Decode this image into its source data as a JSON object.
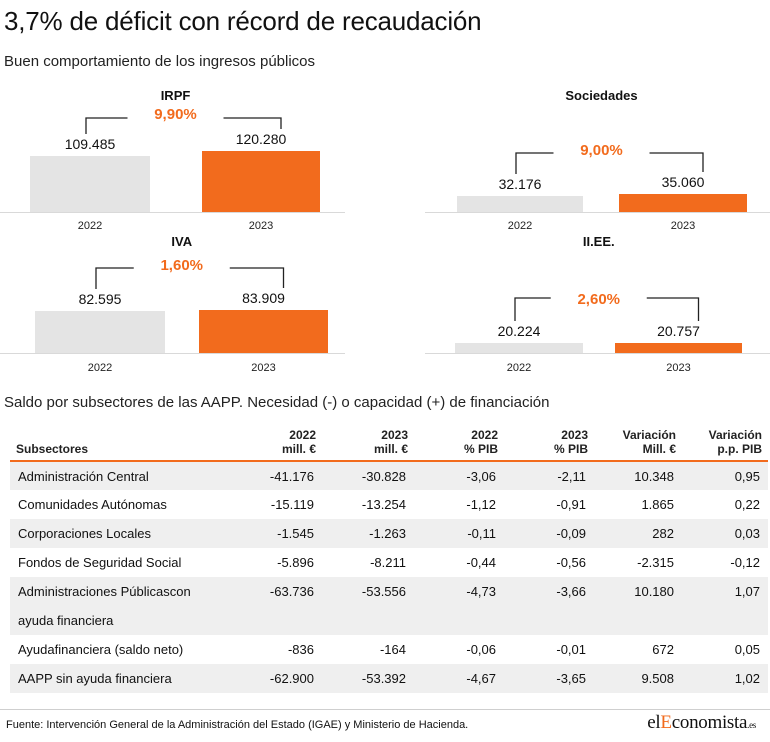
{
  "title": "3,7% de déficit con récord de recaudación",
  "subtitle": "Buen comportamiento de los ingresos públicos",
  "colors": {
    "bar_2022": "#e4e4e4",
    "bar_2023": "#f26b1d",
    "accent": "#f26b1d",
    "bracket": "#222222"
  },
  "chart_data": [
    {
      "type": "bar",
      "title": "IRPF",
      "categories": [
        "2022",
        "2023"
      ],
      "values": [
        109485,
        120280
      ],
      "value_labels": [
        "109.485",
        "120.280"
      ],
      "change_label": "9,90%"
    },
    {
      "type": "bar",
      "title": "Sociedades",
      "categories": [
        "2022",
        "2023"
      ],
      "values": [
        32176,
        35060
      ],
      "value_labels": [
        "32.176",
        "35.060"
      ],
      "change_label": "9,00%"
    },
    {
      "type": "bar",
      "title": "IVA",
      "categories": [
        "2022",
        "2023"
      ],
      "values": [
        82595,
        83909
      ],
      "value_labels": [
        "82.595",
        "83.909"
      ],
      "change_label": "1,60%"
    },
    {
      "type": "bar",
      "title": "II.EE.",
      "categories": [
        "2022",
        "2023"
      ],
      "values": [
        20224,
        20757
      ],
      "value_labels": [
        "20.224",
        "20.757"
      ],
      "change_label": "2,60%"
    }
  ],
  "table": {
    "title": "Saldo por subsectores de las AAPP. Necesidad (-) o capacidad (+) de financiación",
    "headers": [
      {
        "line1": "Subsectores",
        "line2": ""
      },
      {
        "line1": "2022",
        "line2": "mill. €"
      },
      {
        "line1": "2023",
        "line2": "mill. €"
      },
      {
        "line1": "2022",
        "line2": "% PIB"
      },
      {
        "line1": "2023",
        "line2": "% PIB"
      },
      {
        "line1": "Variación",
        "line2": "Mill. €"
      },
      {
        "line1": "Variación",
        "line2": "p.p. PIB"
      }
    ],
    "rows": [
      {
        "name": "Administración Central",
        "name2": "",
        "v2022": "-41.176",
        "v2023": "-30.828",
        "p2022": "-3,06",
        "p2023": "-2,11",
        "var_mill": "10.348",
        "var_pp": "0,95"
      },
      {
        "name": "Comunidades Autónomas",
        "name2": "",
        "v2022": "-15.119",
        "v2023": "-13.254",
        "p2022": "-1,12",
        "p2023": "-0,91",
        "var_mill": "1.865",
        "var_pp": "0,22"
      },
      {
        "name": "Corporaciones Locales",
        "name2": "",
        "v2022": "-1.545",
        "v2023": "-1.263",
        "p2022": "-0,11",
        "p2023": "-0,09",
        "var_mill": "282",
        "var_pp": "0,03"
      },
      {
        "name": "Fondos de Seguridad Social",
        "name2": "",
        "v2022": "-5.896",
        "v2023": "-8.211",
        "p2022": "-0,44",
        "p2023": "-0,56",
        "var_mill": "-2.315",
        "var_pp": "-0,12"
      },
      {
        "name": "Administraciones Públicascon",
        "name2": "ayuda financiera",
        "v2022": "-63.736",
        "v2023": "-53.556",
        "p2022": "-4,73",
        "p2023": "-3,66",
        "var_mill": "10.180",
        "var_pp": "1,07"
      },
      {
        "name": "Ayudafinanciera (saldo neto)",
        "name2": "",
        "v2022": "-836",
        "v2023": "-164",
        "p2022": "-0,06",
        "p2023": "-0,01",
        "var_mill": "672",
        "var_pp": "0,05"
      },
      {
        "name": "AAPP sin ayuda financiera",
        "name2": "",
        "v2022": "-62.900",
        "v2023": "-53.392",
        "p2022": "-4,67",
        "p2023": "-3,65",
        "var_mill": "9.508",
        "var_pp": "1,02"
      }
    ]
  },
  "footer": {
    "source": "Fuente: Intervención General de la Administración del Estado (IGAE) y Ministerio de Hacienda.",
    "logo_part1": "el",
    "logo_part2": "E",
    "logo_part3": "conomista",
    "logo_suffix": ".es"
  }
}
